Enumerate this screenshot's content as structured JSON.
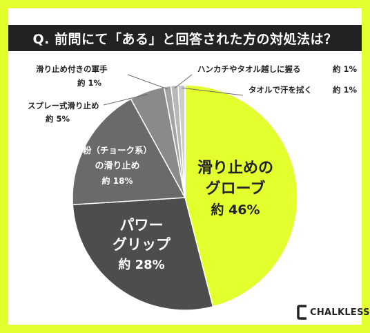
{
  "header": {
    "title": "Q. 前問にて「ある」と回答された方の対処法は？"
  },
  "chart_data": {
    "type": "pie",
    "start": "top",
    "direction": "clockwise",
    "slices": [
      {
        "lines": [
          "滑り止めの",
          "グローブ"
        ],
        "value": 46,
        "value_label": "約 46%",
        "color": "#e4ff2e",
        "label_color": "#222222"
      },
      {
        "lines": [
          "パワー",
          "グリップ"
        ],
        "value": 28,
        "value_label": "約 28%",
        "color": "#4d4d4d",
        "label_color": "#ffffff"
      },
      {
        "lines": [
          "粉（チョーク系）",
          "の滑り止め"
        ],
        "value": 18,
        "value_label": "約 18%",
        "color": "#6a6a6a",
        "label_color": "#ffffff"
      },
      {
        "lines": [
          "スプレー式滑り止め"
        ],
        "value": 5,
        "value_label": "約 5%",
        "color": "#8a8a8a",
        "label_color": "#222222"
      },
      {
        "lines": [
          "滑り止め付きの軍手"
        ],
        "value": 1,
        "value_label": "約 1%",
        "color": "#a3a3a3",
        "label_color": "#222222"
      },
      {
        "lines": [
          "ハンカチやタオル越しに握る"
        ],
        "value": 1,
        "value_label": "約 1%",
        "color": "#b8b8b8",
        "label_color": "#222222"
      },
      {
        "lines": [
          "タオルで汗を拭く"
        ],
        "value": 1,
        "value_label": "約 1%",
        "color": "#cdcdcd",
        "label_color": "#222222"
      }
    ]
  },
  "brand": {
    "logo_text": "CHALKLESS"
  }
}
